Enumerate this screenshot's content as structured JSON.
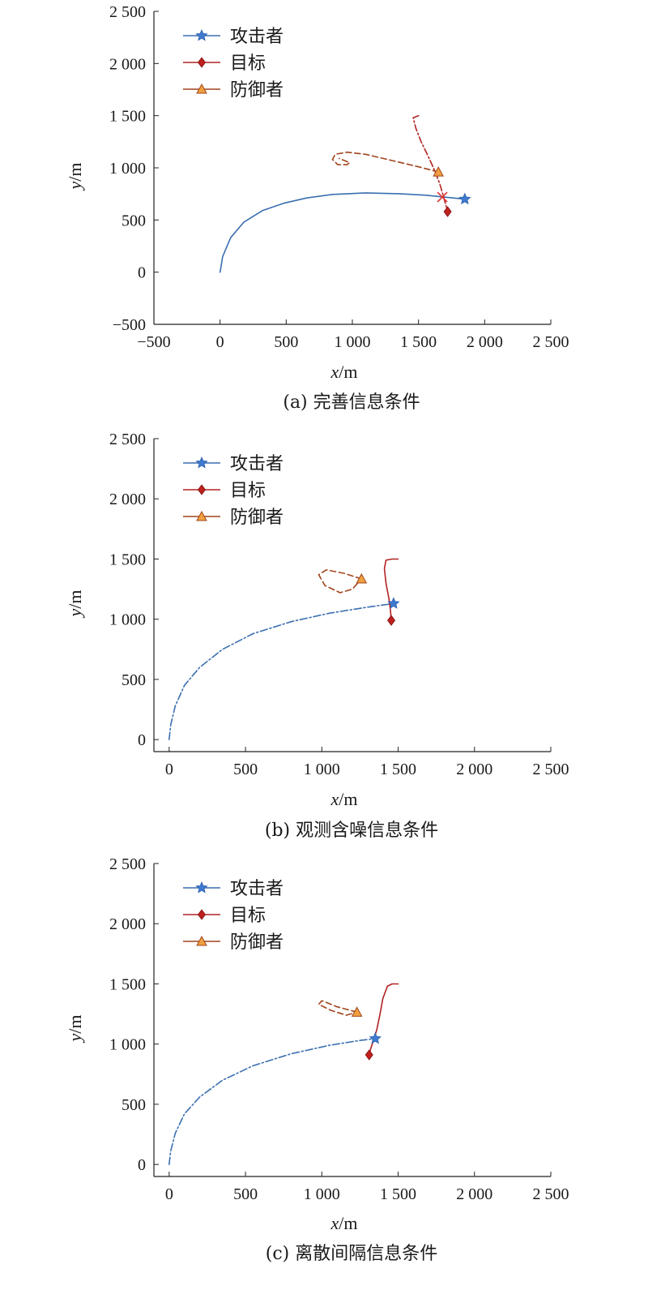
{
  "chart_data": [
    {
      "type": "line",
      "caption": "(a) 完善信息条件",
      "xlabel_var": "x",
      "xlabel_unit": "/m",
      "ylabel_var": "y",
      "ylabel_unit": "/m",
      "xlim": [
        -500,
        2500
      ],
      "ylim": [
        -500,
        2500
      ],
      "xticks": [
        -500,
        0,
        500,
        1000,
        1500,
        2000,
        2500
      ],
      "yticks": [
        -500,
        0,
        500,
        1000,
        1500,
        2000,
        2500
      ],
      "xtick_labels": [
        "−500",
        "0",
        "500",
        "1 000",
        "1 500",
        "2 000",
        "2 500"
      ],
      "ytick_labels": [
        "−500",
        "0",
        "500",
        "1 000",
        "1 500",
        "2 000",
        "2 500"
      ],
      "legend": [
        "攻击者",
        "目标",
        "防御者"
      ],
      "series": [
        {
          "name": "攻击者",
          "color": "#3a6fb0",
          "dash": "",
          "marker": "star",
          "x": [
            0,
            20,
            80,
            180,
            320,
            480,
            650,
            850,
            1100,
            1350,
            1550,
            1680,
            1850
          ],
          "y": [
            0,
            150,
            330,
            480,
            590,
            660,
            710,
            745,
            760,
            752,
            738,
            722,
            700
          ],
          "marker_point": [
            1850,
            700
          ]
        },
        {
          "name": "目标",
          "color": "#b22222",
          "dash": "8,3,2,3",
          "marker": "diamond",
          "x": [
            1500,
            1460,
            1480,
            1520,
            1570,
            1620,
            1660,
            1690,
            1720
          ],
          "y": [
            1500,
            1480,
            1380,
            1250,
            1120,
            980,
            850,
            720,
            580
          ],
          "marker_point": [
            1720,
            580
          ]
        },
        {
          "name": "防御者",
          "color": "#a0451c",
          "dash": "7,4",
          "marker": "triangle",
          "x": [
            1650,
            1500,
            1300,
            1100,
            960,
            870,
            850,
            890,
            960,
            980,
            900
          ],
          "y": [
            960,
            1010,
            1070,
            1130,
            1150,
            1130,
            1080,
            1030,
            1030,
            1050,
            1090
          ],
          "marker_point": [
            1650,
            960
          ]
        }
      ],
      "annotation": {
        "type": "cross",
        "x": 1680,
        "y": 720,
        "color": "#e03030"
      }
    },
    {
      "type": "line",
      "caption": "(b) 观测含噪信息条件",
      "xlabel_var": "x",
      "xlabel_unit": "/m",
      "ylabel_var": "y",
      "ylabel_unit": "/m",
      "xlim": [
        -100,
        2500
      ],
      "ylim": [
        -100,
        2500
      ],
      "xticks": [
        0,
        500,
        1000,
        1500,
        2000,
        2500
      ],
      "yticks": [
        0,
        500,
        1000,
        1500,
        2000,
        2500
      ],
      "xtick_labels": [
        "0",
        "500",
        "1 000",
        "1 500",
        "2 000",
        "2 500"
      ],
      "ytick_labels": [
        "0",
        "500",
        "1 000",
        "1 500",
        "2 000",
        "2 500"
      ],
      "legend": [
        "攻击者",
        "目标",
        "防御者"
      ],
      "series": [
        {
          "name": "攻击者",
          "color": "#3a6fb0",
          "dash": "9,3,2,3",
          "marker": "star",
          "x": [
            0,
            10,
            40,
            100,
            200,
            350,
            550,
            800,
            1050,
            1300,
            1470
          ],
          "y": [
            0,
            120,
            280,
            450,
            600,
            750,
            880,
            980,
            1050,
            1100,
            1130
          ],
          "marker_point": [
            1470,
            1130
          ]
        },
        {
          "name": "目标",
          "color": "#b22222",
          "dash": "",
          "marker": "diamond",
          "x": [
            1500,
            1460,
            1420,
            1410,
            1420,
            1440,
            1450,
            1455
          ],
          "y": [
            1500,
            1500,
            1490,
            1420,
            1300,
            1170,
            1070,
            990
          ],
          "marker_point": [
            1455,
            990
          ]
        },
        {
          "name": "防御者",
          "color": "#a0451c",
          "dash": "7,4",
          "marker": "triangle",
          "x": [
            1260,
            1150,
            1030,
            980,
            1020,
            1120,
            1200,
            1260
          ],
          "y": [
            1335,
            1380,
            1410,
            1370,
            1280,
            1220,
            1250,
            1335
          ],
          "marker_point": [
            1260,
            1335
          ]
        }
      ]
    },
    {
      "type": "line",
      "caption": "(c) 离散间隔信息条件",
      "xlabel_var": "x",
      "xlabel_unit": "/m",
      "ylabel_var": "y",
      "ylabel_unit": "/m",
      "xlim": [
        -100,
        2500
      ],
      "ylim": [
        -100,
        2500
      ],
      "xticks": [
        0,
        500,
        1000,
        1500,
        2000,
        2500
      ],
      "yticks": [
        0,
        500,
        1000,
        1500,
        2000,
        2500
      ],
      "xtick_labels": [
        "0",
        "500",
        "1 000",
        "1 500",
        "2 000",
        "2 500"
      ],
      "ytick_labels": [
        "0",
        "500",
        "1 000",
        "1 500",
        "2 000",
        "2 500"
      ],
      "legend": [
        "攻击者",
        "目标",
        "防御者"
      ],
      "series": [
        {
          "name": "攻击者",
          "color": "#3a6fb0",
          "dash": "9,3,2,3",
          "marker": "star",
          "x": [
            0,
            10,
            40,
            100,
            200,
            350,
            550,
            800,
            1050,
            1250,
            1350
          ],
          "y": [
            0,
            110,
            260,
            420,
            560,
            700,
            820,
            920,
            990,
            1030,
            1045
          ],
          "marker_point": [
            1350,
            1045
          ]
        },
        {
          "name": "目标",
          "color": "#b22222",
          "dash": "",
          "marker": "diamond",
          "x": [
            1500,
            1460,
            1430,
            1400,
            1380,
            1360,
            1340,
            1320,
            1310
          ],
          "y": [
            1500,
            1500,
            1480,
            1380,
            1240,
            1120,
            1040,
            960,
            910
          ],
          "marker_point": [
            1310,
            910
          ]
        },
        {
          "name": "防御者",
          "color": "#a0451c",
          "dash": "7,4",
          "marker": "triangle",
          "x": [
            1230,
            1100,
            1000,
            980,
            1060,
            1160,
            1230
          ],
          "y": [
            1265,
            1310,
            1360,
            1330,
            1280,
            1240,
            1265
          ],
          "marker_point": [
            1230,
            1265
          ]
        }
      ]
    }
  ]
}
